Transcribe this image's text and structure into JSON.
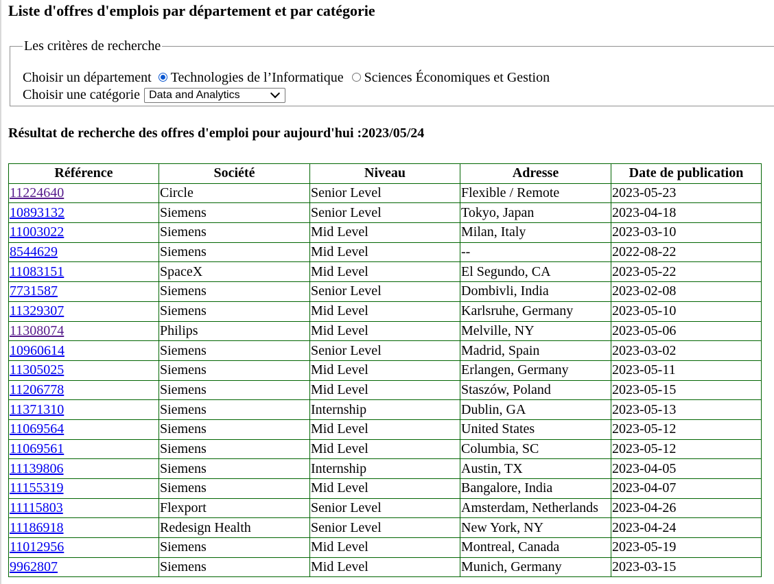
{
  "page": {
    "title": "Liste d'offres d'emplois par département et par catégorie"
  },
  "criteria": {
    "legend": "Les critères de recherche",
    "department_label": "Choisir un département",
    "departments": [
      {
        "label": "Technologies de l’Informatique",
        "checked": true
      },
      {
        "label": "Sciences Économiques et Gestion",
        "checked": false
      }
    ],
    "category_label": "Choisir une catégorie",
    "category_selected": "Data and Analytics"
  },
  "results": {
    "title": "Résultat de recherche des offres d'emploi pour aujourd'hui :2023/05/24",
    "columns": [
      "Référence",
      "Société",
      "Niveau",
      "Adresse",
      "Date de publication"
    ],
    "rows": [
      {
        "ref": "11224640",
        "visited": true,
        "company": "Circle",
        "level": "Senior Level",
        "address": "Flexible / Remote",
        "date": "2023-05-23"
      },
      {
        "ref": "10893132",
        "visited": false,
        "company": "Siemens",
        "level": "Senior Level",
        "address": "Tokyo, Japan",
        "date": "2023-04-18"
      },
      {
        "ref": "11003022",
        "visited": false,
        "company": "Siemens",
        "level": "Mid Level",
        "address": "Milan, Italy",
        "date": "2023-03-10"
      },
      {
        "ref": "8544629",
        "visited": false,
        "company": "Siemens",
        "level": "Mid Level",
        "address": "--",
        "date": "2022-08-22"
      },
      {
        "ref": "11083151",
        "visited": false,
        "company": "SpaceX",
        "level": "Mid Level",
        "address": "El Segundo, CA",
        "date": "2023-05-22"
      },
      {
        "ref": "7731587",
        "visited": false,
        "company": "Siemens",
        "level": "Senior Level",
        "address": "Dombivli, India",
        "date": "2023-02-08"
      },
      {
        "ref": "11329307",
        "visited": false,
        "company": "Siemens",
        "level": "Mid Level",
        "address": "Karlsruhe, Germany",
        "date": "2023-05-10"
      },
      {
        "ref": "11308074",
        "visited": true,
        "company": "Philips",
        "level": "Mid Level",
        "address": "Melville, NY",
        "date": "2023-05-06"
      },
      {
        "ref": "10960614",
        "visited": false,
        "company": "Siemens",
        "level": "Senior Level",
        "address": "Madrid, Spain",
        "date": "2023-03-02"
      },
      {
        "ref": "11305025",
        "visited": false,
        "company": "Siemens",
        "level": "Mid Level",
        "address": "Erlangen, Germany",
        "date": "2023-05-11"
      },
      {
        "ref": "11206778",
        "visited": false,
        "company": "Siemens",
        "level": "Mid Level",
        "address": "Staszów, Poland",
        "date": "2023-05-15"
      },
      {
        "ref": "11371310",
        "visited": false,
        "company": "Siemens",
        "level": "Internship",
        "address": "Dublin, GA",
        "date": "2023-05-13"
      },
      {
        "ref": "11069564",
        "visited": false,
        "company": "Siemens",
        "level": "Mid Level",
        "address": "United States",
        "date": "2023-05-12"
      },
      {
        "ref": "11069561",
        "visited": false,
        "company": "Siemens",
        "level": "Mid Level",
        "address": "Columbia, SC",
        "date": "2023-05-12"
      },
      {
        "ref": "11139806",
        "visited": false,
        "company": "Siemens",
        "level": "Internship",
        "address": "Austin, TX",
        "date": "2023-04-05"
      },
      {
        "ref": "11155319",
        "visited": false,
        "company": "Siemens",
        "level": "Mid Level",
        "address": "Bangalore, India",
        "date": "2023-04-07"
      },
      {
        "ref": "11115803",
        "visited": false,
        "company": "Flexport",
        "level": "Senior Level",
        "address": "Amsterdam, Netherlands",
        "date": "2023-04-26"
      },
      {
        "ref": "11186918",
        "visited": false,
        "company": "Redesign Health",
        "level": "Senior Level",
        "address": "New York, NY",
        "date": "2023-04-24"
      },
      {
        "ref": "11012956",
        "visited": false,
        "company": "Siemens",
        "level": "Mid Level",
        "address": "Montreal, Canada",
        "date": "2023-05-19"
      },
      {
        "ref": "9962807",
        "visited": false,
        "company": "Siemens",
        "level": "Mid Level",
        "address": "Munich, Germany",
        "date": "2023-03-15"
      }
    ]
  },
  "colors": {
    "link": "#0000ee",
    "link_visited": "#551a8b",
    "table_border": "#006400",
    "radio_accent": "#0b57d0"
  }
}
